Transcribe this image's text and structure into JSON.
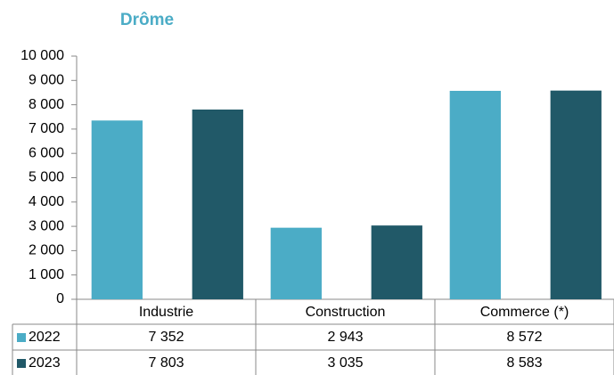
{
  "chart_data": {
    "type": "bar",
    "title": "Drôme",
    "categories": [
      "Industrie",
      "Construction",
      "Commerce (*)"
    ],
    "series": [
      {
        "name": "2022",
        "color": "#4bacc6",
        "values": [
          7352,
          2943,
          8572
        ],
        "value_labels": [
          "7 352",
          "2 943",
          "8 572"
        ]
      },
      {
        "name": "2023",
        "color": "#215968",
        "values": [
          7803,
          3035,
          8583
        ],
        "value_labels": [
          "7 803",
          "3 035",
          "8 583"
        ]
      }
    ],
    "ylim": [
      0,
      10000
    ],
    "yticks": [
      0,
      {
        "value": 1000,
        "label": "1 000"
      },
      {
        "value": 2000,
        "label": "2 000"
      },
      {
        "value": 3000,
        "label": "3 000"
      },
      {
        "value": 4000,
        "label": "4 000"
      },
      {
        "value": 5000,
        "label": "5 000"
      },
      {
        "value": 6000,
        "label": "6 000"
      },
      {
        "value": 7000,
        "label": "7 000"
      },
      {
        "value": 8000,
        "label": "8 000"
      },
      {
        "value": 9000,
        "label": "9 000"
      },
      {
        "value": 10000,
        "label": "10 000"
      }
    ],
    "grid": false
  }
}
